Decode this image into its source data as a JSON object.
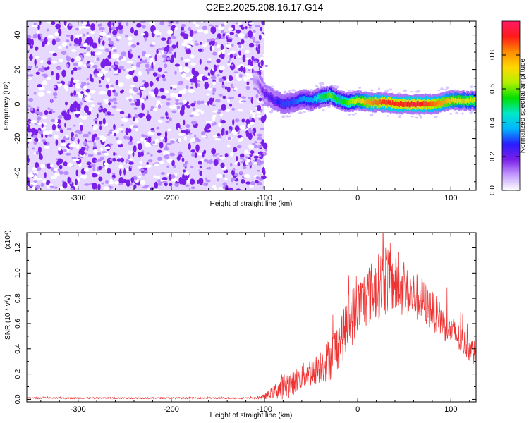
{
  "title": "C2E2.2025.208.16.17.G14",
  "chart_data": [
    {
      "type": "heatmap",
      "ylabel": "Frequency (Hz)",
      "xlabel": "Height of straight line (km)",
      "xlim": [
        -355,
        127
      ],
      "ylim": [
        -50,
        48
      ],
      "xticks": [
        -300,
        -200,
        -100,
        0,
        100
      ],
      "yticks": [
        -40,
        -20,
        0,
        20,
        40
      ],
      "xtick_labels": [
        "-300",
        "-200",
        "-100",
        "0",
        "100"
      ],
      "ytick_labels": [
        "-40",
        "-20",
        "0",
        "20",
        "40"
      ],
      "noise_region_x": [
        -355,
        -100
      ],
      "signal_track": {
        "x": [
          -110,
          -100,
          -90,
          -80,
          -70,
          -60,
          -50,
          -40,
          -30,
          -20,
          -10,
          0,
          10,
          20,
          30,
          40,
          50,
          60,
          70,
          80,
          90,
          100,
          110,
          127
        ],
        "freq": [
          14,
          6,
          2,
          0,
          1,
          3,
          2,
          4,
          5,
          2,
          1,
          2,
          1,
          1,
          1,
          0,
          0,
          0,
          0,
          0,
          1,
          2,
          2,
          2
        ],
        "amplitude": [
          0.1,
          0.2,
          0.25,
          0.3,
          0.3,
          0.35,
          0.35,
          0.5,
          0.6,
          0.5,
          0.6,
          0.7,
          0.8,
          0.85,
          0.9,
          0.9,
          0.9,
          0.95,
          0.9,
          0.85,
          0.8,
          0.75,
          0.7,
          0.65
        ]
      },
      "colorbar": {
        "label": "Normalized spectral amplitude",
        "range": [
          0.0,
          1.0
        ],
        "ticks": [
          "0.0",
          "0.2",
          "0.4",
          "0.6",
          "0.8"
        ],
        "colors": [
          "#ffffff",
          "#c39bff",
          "#7a1fe8",
          "#2a1cff",
          "#00b4ff",
          "#00e8c8",
          "#00e000",
          "#b4f000",
          "#ffd800",
          "#ff8c00",
          "#ff1a1a",
          "#ff1a66"
        ]
      }
    },
    {
      "type": "line",
      "ylabel": "SNR (10 * v/v)",
      "multiplier": "(x10⁴)",
      "xlabel": "Height of straight line (km)",
      "xlim": [
        -355,
        127
      ],
      "ylim": [
        -0.02,
        1.32
      ],
      "xticks": [
        -300,
        -200,
        -100,
        0,
        100
      ],
      "yticks": [
        0.0,
        0.2,
        0.4,
        0.6,
        0.8,
        1.0,
        1.2
      ],
      "xtick_labels": [
        "-300",
        "-200",
        "-100",
        "0",
        "100"
      ],
      "ytick_labels": [
        "0.0",
        "0.2",
        "0.4",
        "0.6",
        "0.8",
        "1.0",
        "1.2"
      ],
      "series_color": "#ee3333",
      "series": [
        {
          "name": "",
          "x": [
            -355,
            -300,
            -250,
            -200,
            -150,
            -110,
            -100,
            -90,
            -80,
            -70,
            -60,
            -50,
            -40,
            -30,
            -20,
            -10,
            0,
            10,
            20,
            30,
            40,
            50,
            60,
            70,
            80,
            90,
            100,
            110,
            120,
            127
          ],
          "values": [
            0.01,
            0.01,
            0.01,
            0.01,
            0.01,
            0.01,
            0.02,
            0.06,
            0.1,
            0.13,
            0.18,
            0.22,
            0.27,
            0.32,
            0.45,
            0.62,
            0.72,
            0.82,
            0.88,
            0.96,
            0.92,
            0.85,
            0.82,
            0.78,
            0.7,
            0.62,
            0.55,
            0.47,
            0.4,
            0.36
          ],
          "spread": [
            0.006,
            0.006,
            0.006,
            0.006,
            0.006,
            0.006,
            0.02,
            0.05,
            0.12,
            0.1,
            0.1,
            0.12,
            0.14,
            0.18,
            0.2,
            0.25,
            0.22,
            0.25,
            0.25,
            0.3,
            0.25,
            0.2,
            0.2,
            0.18,
            0.16,
            0.14,
            0.12,
            0.12,
            0.1,
            0.1
          ]
        }
      ]
    }
  ]
}
